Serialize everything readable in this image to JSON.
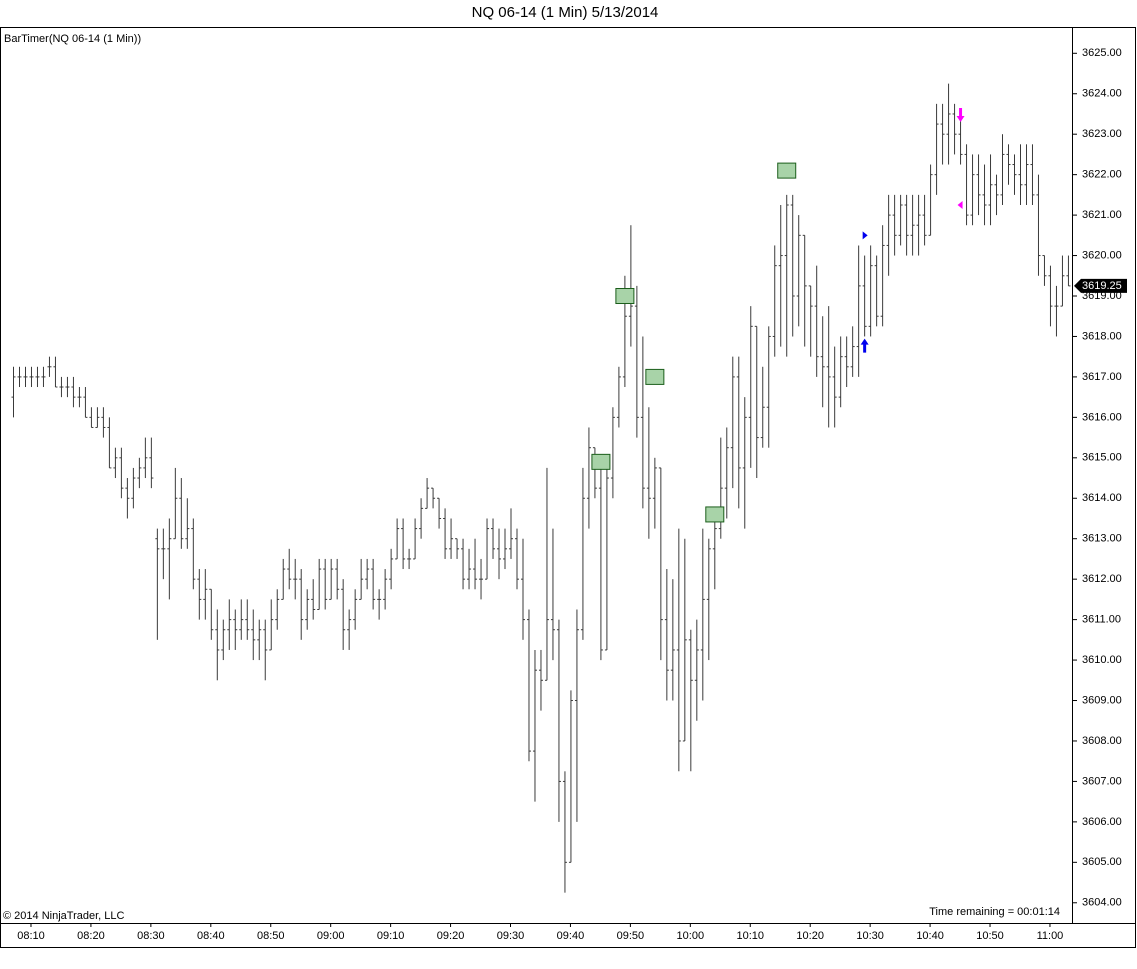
{
  "chart_data": {
    "type": "ohlc",
    "title": "NQ 06-14 (1 Min)  5/13/2014",
    "indicator_label": "BarTimer(NQ 06-14 (1 Min))",
    "copyright": "© 2014 NinjaTrader, LLC",
    "timer_text": "Time remaining = 00:01:14",
    "color": "#3a3a3a",
    "categories": [
      null,
      null,
      null,
      "08:10",
      null,
      null,
      null,
      null,
      null,
      null,
      null,
      null,
      null,
      "08:20",
      null,
      null,
      null,
      null,
      null,
      null,
      null,
      null,
      null,
      "08:30",
      null,
      null,
      null,
      null,
      null,
      null,
      null,
      null,
      null,
      "08:40",
      null,
      null,
      null,
      null,
      null,
      null,
      null,
      null,
      null,
      "08:50",
      null,
      null,
      null,
      null,
      null,
      null,
      null,
      null,
      null,
      "09:00",
      null,
      null,
      null,
      null,
      null,
      null,
      null,
      null,
      null,
      "09:10",
      null,
      null,
      null,
      null,
      null,
      null,
      null,
      null,
      null,
      "09:20",
      null,
      null,
      null,
      null,
      null,
      null,
      null,
      null,
      null,
      "09:30",
      null,
      null,
      null,
      null,
      null,
      null,
      null,
      null,
      null,
      "09:40",
      null,
      null,
      null,
      null,
      null,
      null,
      null,
      null,
      null,
      "09:50",
      null,
      null,
      null,
      null,
      null,
      null,
      null,
      null,
      null,
      "10:00",
      null,
      null,
      null,
      null,
      null,
      null,
      null,
      null,
      null,
      "10:10",
      null,
      null,
      null,
      null,
      null,
      null,
      null,
      null,
      null,
      "10:20",
      null,
      null,
      null,
      null,
      null,
      null,
      null,
      null,
      null,
      "10:30",
      null,
      null,
      null,
      null,
      null,
      null,
      null,
      null,
      null,
      "10:40",
      null,
      null,
      null,
      null,
      null,
      null,
      null,
      null,
      null,
      "10:50",
      null,
      null,
      null,
      null,
      null,
      null,
      null,
      null,
      null,
      "11:00",
      null,
      null,
      null
    ],
    "open": [
      3616.5,
      3617,
      3617,
      3617,
      3617,
      3617,
      3617.25,
      3617.25,
      3616.75,
      3616.75,
      3616.75,
      3616.5,
      3616.5,
      3616,
      3615.75,
      3616,
      3615.75,
      3614.75,
      3615,
      3614.25,
      3614,
      3614.5,
      3614.75,
      3615,
      3613,
      3612.75,
      3612.75,
      3613,
      3614,
      3613,
      3613.25,
      3612,
      3611.5,
      3611.75,
      3610.75,
      3610.25,
      3610.75,
      3611,
      3610.75,
      3611,
      3610.75,
      3610.5,
      3610.75,
      3610.25,
      3611,
      3611.5,
      3612.25,
      3612,
      3612,
      3611,
      3611.5,
      3611.25,
      3612.25,
      3611.5,
      3612.25,
      3611.75,
      3610.75,
      3611,
      3611.5,
      3612,
      3612.25,
      3611.5,
      3611.5,
      3612,
      3612.5,
      3613.25,
      3612.5,
      3612.5,
      3613.25,
      3613.75,
      3614.25,
      3614,
      3613.5,
      3612.75,
      3613,
      3612.75,
      3612,
      3612.25,
      3612,
      3612,
      3613.25,
      3612.75,
      3612.5,
      3612.75,
      3613,
      3612,
      3611,
      3607.75,
      3609.75,
      3609.5,
      3611,
      3610.75,
      3607,
      3605,
      3609,
      3610.75,
      3614,
      3615.25,
      3614.25,
      3610.25,
      3614.5,
      3616,
      3617,
      3618.5,
      3618.75,
      3616,
      3614.25,
      3614,
      3614.75,
      3611,
      3609.75,
      3610.25,
      3608,
      3610.5,
      3609.5,
      3610.25,
      3611.5,
      3612.75,
      3613.25,
      3614.25,
      3615.25,
      3617,
      3614.75,
      3616,
      3618.25,
      3615.5,
      3616.25,
      3618,
      3619.75,
      3620,
      3621.25,
      3619,
      3620.5,
      3619.25,
      3618.75,
      3617.5,
      3617.25,
      3617,
      3616.5,
      3617.5,
      3617.25,
      3617.75,
      3619.25,
      3618.25,
      3619.75,
      3618.5,
      3620.25,
      3621,
      3620.5,
      3621.25,
      3620.5,
      3620.75,
      3621,
      3620.5,
      3622,
      3623.25,
      3623,
      3623.5,
      3623,
      3622.5,
      3621,
      3622,
      3621.5,
      3621.25,
      3621.75,
      3621.5,
      3622.5,
      3622.25,
      3622,
      3621.75,
      3622.25,
      3621.5,
      3620,
      3619.5,
      3618.75,
      3618.75,
      3619.5
    ],
    "high": [
      3617.25,
      3617.25,
      3617.25,
      3617.25,
      3617.25,
      3617.25,
      3617.5,
      3617.5,
      3617,
      3617,
      3617,
      3616.75,
      3616.75,
      3616.25,
      3616.25,
      3616.25,
      3616,
      3615.25,
      3615.25,
      3614.5,
      3614.75,
      3615,
      3615.5,
      3615.5,
      3613.25,
      3613.25,
      3613.5,
      3614.75,
      3614.5,
      3614,
      3613.5,
      3612.25,
      3612.25,
      3611.75,
      3611.25,
      3611,
      3611.5,
      3611.25,
      3611.5,
      3611.5,
      3611.25,
      3611,
      3611,
      3611.5,
      3611.75,
      3612.5,
      3612.75,
      3612.5,
      3612.25,
      3611.75,
      3612,
      3612.5,
      3612.5,
      3612.5,
      3612.5,
      3612,
      3611.25,
      3611.75,
      3612.5,
      3612.5,
      3612.5,
      3611.75,
      3612.25,
      3612.75,
      3613.5,
      3613.5,
      3612.75,
      3613.5,
      3614,
      3614.5,
      3614.25,
      3614,
      3613.75,
      3613.5,
      3613,
      3613,
      3612.75,
      3613,
      3612.5,
      3613.5,
      3613.5,
      3613.25,
      3613.25,
      3613.75,
      3613.25,
      3613,
      3611.25,
      3610.25,
      3610.25,
      3614.75,
      3613.25,
      3611,
      3607.25,
      3609.25,
      3611.25,
      3614.75,
      3615.75,
      3615.25,
      3614.75,
      3615,
      3616.25,
      3617.25,
      3619.5,
      3620.75,
      3619.25,
      3618,
      3616.25,
      3615,
      3614.75,
      3612.25,
      3612,
      3613.25,
      3613,
      3610.75,
      3611,
      3613.25,
      3613,
      3613.5,
      3615.5,
      3615.75,
      3617.5,
      3617.5,
      3616.5,
      3618.75,
      3618.25,
      3617.25,
      3618.25,
      3620.25,
      3621.25,
      3621.5,
      3621.5,
      3621,
      3620.5,
      3619.25,
      3619.75,
      3618.5,
      3618.75,
      3617.75,
      3618,
      3618,
      3618.25,
      3620.25,
      3620,
      3620.25,
      3620,
      3620.75,
      3621.5,
      3621.5,
      3621.5,
      3621.5,
      3621.5,
      3621.5,
      3621.5,
      3622.25,
      3623.75,
      3623.75,
      3624.25,
      3623.75,
      3623.5,
      3622.75,
      3622.5,
      3622.5,
      3622.25,
      3622.5,
      3622,
      3623,
      3622.75,
      3622.5,
      3622.75,
      3622.75,
      3622.75,
      3622,
      3620,
      3619.75,
      3619.25,
      3620,
      3620
    ],
    "low": [
      3616,
      3616.75,
      3616.75,
      3616.75,
      3616.75,
      3616.75,
      3617,
      3616.75,
      3616.5,
      3616.5,
      3616.25,
      3616.25,
      3616,
      3615.75,
      3615.75,
      3615.5,
      3614.75,
      3614.5,
      3614,
      3613.5,
      3613.75,
      3614.25,
      3614.5,
      3614.25,
      3610.5,
      3612,
      3611.5,
      3613,
      3612.75,
      3612.75,
      3611.75,
      3611,
      3611,
      3610.5,
      3609.5,
      3610,
      3610.25,
      3610.25,
      3610.5,
      3610.5,
      3610,
      3610,
      3609.5,
      3610.25,
      3610.75,
      3611.5,
      3611.75,
      3611.5,
      3610.5,
      3610.75,
      3611,
      3611.25,
      3611.25,
      3611.5,
      3611.5,
      3610.25,
      3610.25,
      3610.75,
      3611.5,
      3611.75,
      3611.25,
      3611,
      3611.25,
      3611.75,
      3612.5,
      3612.25,
      3612.25,
      3612.5,
      3613,
      3613.75,
      3613.75,
      3613.25,
      3612.5,
      3612.5,
      3612.5,
      3611.75,
      3611.75,
      3611.75,
      3611.5,
      3612,
      3612.5,
      3612,
      3612.25,
      3612.5,
      3611.75,
      3610.5,
      3607.5,
      3606.5,
      3608.75,
      3609.5,
      3610,
      3606,
      3604.25,
      3605,
      3606,
      3610.5,
      3613.25,
      3614,
      3610,
      3610.25,
      3614,
      3615.75,
      3616.75,
      3617.75,
      3615.5,
      3613.75,
      3613,
      3613.25,
      3610,
      3609,
      3609,
      3607.25,
      3608,
      3607.25,
      3608.5,
      3609,
      3610,
      3611.75,
      3613,
      3613.5,
      3614.25,
      3613.75,
      3613.25,
      3614.75,
      3614.5,
      3615.25,
      3615.25,
      3617.5,
      3617.75,
      3617.5,
      3618,
      3618.25,
      3617.75,
      3617.5,
      3617,
      3616.25,
      3615.75,
      3615.75,
      3616.25,
      3616.75,
      3617,
      3617,
      3618,
      3618,
      3618.25,
      3618.25,
      3619.5,
      3620,
      3620.25,
      3620,
      3620,
      3620,
      3620.25,
      3620.5,
      3621.5,
      3622.25,
      3622.25,
      3622.5,
      3622.25,
      3620.75,
      3620.75,
      3621,
      3620.75,
      3620.75,
      3621,
      3621.25,
      3621.75,
      3621.5,
      3621.25,
      3621.25,
      3621.25,
      3619.5,
      3619.25,
      3618.25,
      3618,
      3618.75,
      3619.25
    ],
    "close": [
      3617,
      3617,
      3617,
      3617,
      3617,
      3617,
      3617.25,
      3616.75,
      3616.75,
      3616.75,
      3616.5,
      3616.5,
      3616,
      3615.75,
      3616,
      3615.75,
      3614.75,
      3615,
      3614.25,
      3614,
      3614.5,
      3614.75,
      3615,
      3614.5,
      3612.75,
      3612.75,
      3613,
      3614,
      3613,
      3613.25,
      3612,
      3611.5,
      3611.75,
      3610.75,
      3610.25,
      3610.75,
      3611,
      3610.75,
      3611,
      3610.75,
      3610.5,
      3610.75,
      3610.25,
      3611,
      3611.5,
      3612.25,
      3612,
      3612,
      3611,
      3611.5,
      3611.25,
      3612.25,
      3611.5,
      3612.25,
      3611.75,
      3610.75,
      3611,
      3611.5,
      3612,
      3612.25,
      3611.5,
      3611.5,
      3612,
      3612.5,
      3613.25,
      3612.5,
      3612.5,
      3613.25,
      3613.75,
      3614.25,
      3614,
      3613.5,
      3612.75,
      3613,
      3612.75,
      3612,
      3612.25,
      3612,
      3612,
      3613.25,
      3612.75,
      3612.5,
      3612.75,
      3613,
      3612,
      3611,
      3607.75,
      3609.75,
      3609.5,
      3611,
      3610.75,
      3607,
      3605,
      3609,
      3610.75,
      3614,
      3615.25,
      3614.25,
      3610.25,
      3614.5,
      3616,
      3617,
      3618.5,
      3618.75,
      3616,
      3614.25,
      3614,
      3614.75,
      3611,
      3609.75,
      3610.25,
      3608,
      3610.5,
      3609.5,
      3610.25,
      3611.5,
      3612.75,
      3613.25,
      3614.25,
      3615.25,
      3617,
      3614.75,
      3616,
      3618.25,
      3615.5,
      3616.25,
      3618,
      3619.75,
      3620,
      3621.25,
      3619,
      3620.5,
      3619.25,
      3618.75,
      3617.5,
      3617.25,
      3617,
      3616.5,
      3617.5,
      3617.25,
      3617.75,
      3619.25,
      3618.25,
      3619.75,
      3618.5,
      3620.25,
      3621,
      3620.5,
      3621.25,
      3620.5,
      3620.75,
      3621,
      3620.5,
      3622,
      3623.25,
      3623,
      3623.5,
      3623,
      3622.5,
      3621,
      3622,
      3621.5,
      3621.25,
      3621.75,
      3621.5,
      3622.5,
      3622.25,
      3622,
      3621.75,
      3622.25,
      3621.5,
      3620,
      3619.5,
      3618.75,
      3618.75,
      3619.5,
      3619.25
    ],
    "markers": [
      {
        "shape": "box",
        "color": "#a8d3a8",
        "bar": 98,
        "price": 3614.9
      },
      {
        "shape": "box",
        "color": "#a8d3a8",
        "bar": 102,
        "price": 3619.0
      },
      {
        "shape": "box",
        "color": "#a8d3a8",
        "bar": 107,
        "price": 3617.0
      },
      {
        "shape": "box",
        "color": "#a8d3a8",
        "bar": 117,
        "price": 3613.6
      },
      {
        "shape": "box",
        "color": "#a8d3a8",
        "bar": 129,
        "price": 3622.1
      },
      {
        "shape": "arrow-up",
        "color": "#0000ee",
        "bar": 142,
        "price": 3617.75
      },
      {
        "shape": "triangle-right",
        "color": "#0000ee",
        "bar": 142,
        "price": 3620.5
      },
      {
        "shape": "arrow-down",
        "color": "#ff00ff",
        "bar": 158,
        "price": 3623.5
      },
      {
        "shape": "triangle-left",
        "color": "#ff00ff",
        "bar": 158,
        "price": 3621.25
      }
    ],
    "ylim": [
      3603.5,
      3625.65
    ],
    "yticks": [
      {
        "value": 3604,
        "label": "3604.00"
      },
      {
        "value": 3605,
        "label": "3605.00"
      },
      {
        "value": 3606,
        "label": "3606.00"
      },
      {
        "value": 3607,
        "label": "3607.00"
      },
      {
        "value": 3608,
        "label": "3608.00"
      },
      {
        "value": 3609,
        "label": "3609.00"
      },
      {
        "value": 3610,
        "label": "3610.00"
      },
      {
        "value": 3611,
        "label": "3611.00"
      },
      {
        "value": 3612,
        "label": "3612.00"
      },
      {
        "value": 3613,
        "label": "3613.00"
      },
      {
        "value": 3614,
        "label": "3614.00"
      },
      {
        "value": 3615,
        "label": "3615.00"
      },
      {
        "value": 3616,
        "label": "3616.00"
      },
      {
        "value": 3617,
        "label": "3617.00"
      },
      {
        "value": 3618,
        "label": "3618.00"
      },
      {
        "value": 3619,
        "label": "3619.00"
      },
      {
        "value": 3620,
        "label": "3620.00"
      },
      {
        "value": 3621,
        "label": "3621.00"
      },
      {
        "value": 3622,
        "label": "3622.00"
      },
      {
        "value": 3623,
        "label": "3623.00"
      },
      {
        "value": 3624,
        "label": "3624.00"
      },
      {
        "value": 3625,
        "label": "3625.00"
      }
    ]
  }
}
